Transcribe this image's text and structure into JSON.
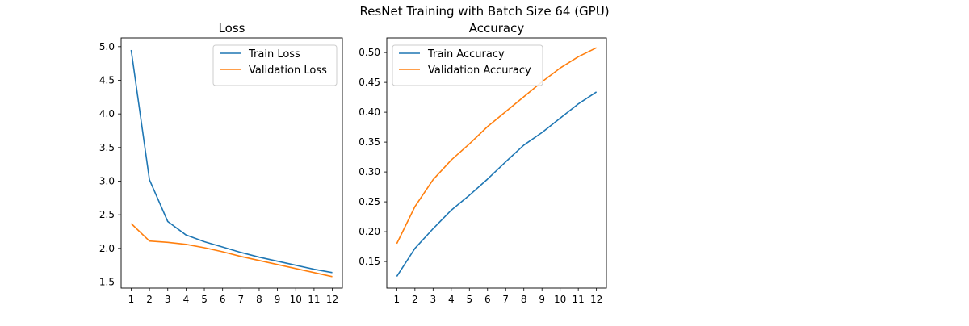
{
  "figure": {
    "suptitle": "ResNet Training with Batch Size 64 (GPU)"
  },
  "chart_data": [
    {
      "type": "line",
      "title": "Loss",
      "xlabel": "",
      "ylabel": "",
      "x": [
        1,
        2,
        3,
        4,
        5,
        6,
        7,
        8,
        9,
        10,
        11,
        12
      ],
      "xticks": [
        "1",
        "2",
        "3",
        "4",
        "5",
        "6",
        "7",
        "8",
        "9",
        "10",
        "11",
        "12"
      ],
      "yticks": [
        "1.5",
        "2.0",
        "2.5",
        "3.0",
        "3.5",
        "4.0",
        "4.5",
        "5.0"
      ],
      "ylim": [
        1.41,
        5.13
      ],
      "grid": false,
      "legend": "upper-right",
      "series": [
        {
          "name": "Train Loss",
          "color": "#1f77b4",
          "values": [
            4.95,
            3.02,
            2.4,
            2.2,
            2.1,
            2.02,
            1.94,
            1.87,
            1.81,
            1.75,
            1.69,
            1.64
          ]
        },
        {
          "name": "Validation Loss",
          "color": "#ff7f0e",
          "values": [
            2.37,
            2.11,
            2.09,
            2.06,
            2.01,
            1.95,
            1.88,
            1.82,
            1.76,
            1.7,
            1.64,
            1.58
          ]
        }
      ]
    },
    {
      "type": "line",
      "title": "Accuracy",
      "xlabel": "",
      "ylabel": "",
      "x": [
        1,
        2,
        3,
        4,
        5,
        6,
        7,
        8,
        9,
        10,
        11,
        12
      ],
      "xticks": [
        "1",
        "2",
        "3",
        "4",
        "5",
        "6",
        "7",
        "8",
        "9",
        "10",
        "11",
        "12"
      ],
      "yticks": [
        "0.15",
        "0.20",
        "0.25",
        "0.30",
        "0.35",
        "0.40",
        "0.45",
        "0.50"
      ],
      "ylim": [
        0.1055,
        0.5245
      ],
      "grid": false,
      "legend": "upper-left",
      "series": [
        {
          "name": "Train Accuracy",
          "color": "#1f77b4",
          "values": [
            0.125,
            0.172,
            0.205,
            0.236,
            0.261,
            0.288,
            0.317,
            0.345,
            0.366,
            0.39,
            0.414,
            0.434
          ]
        },
        {
          "name": "Validation Accuracy",
          "color": "#ff7f0e",
          "values": [
            0.18,
            0.242,
            0.287,
            0.32,
            0.347,
            0.376,
            0.401,
            0.426,
            0.451,
            0.474,
            0.493,
            0.508
          ]
        }
      ]
    }
  ]
}
